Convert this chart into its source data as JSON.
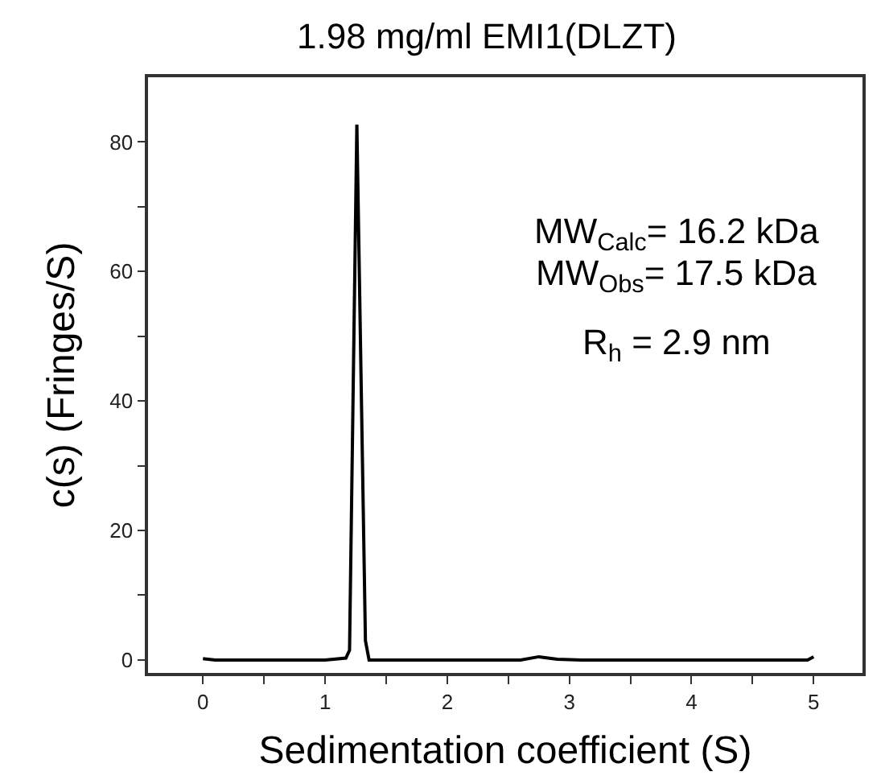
{
  "chart_data": {
    "type": "line",
    "title": "1.98 mg/ml EMI1(DLZT)",
    "xlabel": "Sedimentation coefficient (S)",
    "ylabel": "c(s) (Fringes/S)",
    "x": [
      0,
      0.1,
      1.0,
      1.17,
      1.2,
      1.26,
      1.33,
      1.36,
      1.5,
      2.6,
      2.75,
      2.9,
      3.1,
      4.95,
      5.0
    ],
    "series": [
      {
        "color": "#000000",
        "values": [
          0.2,
          0,
          0,
          0.3,
          1.5,
          82.7,
          3,
          0,
          0,
          0,
          0.5,
          0.1,
          0,
          0,
          0.5
        ]
      }
    ],
    "xlim": [
      -0.45,
      5.4
    ],
    "ylim": [
      -2,
      90
    ],
    "xticks": [
      0,
      {
        "value": 0.5,
        "label": null
      },
      1,
      {
        "value": 1.5,
        "label": null
      },
      2,
      {
        "value": 2.5,
        "label": null
      },
      3,
      {
        "value": 3.5,
        "label": null
      },
      4,
      {
        "value": 4.5,
        "label": null
      },
      5
    ],
    "yticks": [
      0,
      {
        "value": 10,
        "label": null
      },
      20,
      {
        "value": 30,
        "label": null
      },
      40,
      {
        "value": 50,
        "label": null
      },
      60,
      {
        "value": 70,
        "label": null
      },
      80
    ],
    "annotations": [
      "MW$_{Calc}$= 16.2 kDa",
      "MW$_{Obs}$= 17.5 kDa",
      "R$_{h}$ = 2.9 nm"
    ],
    "marker": "none",
    "line_style": "solid"
  }
}
